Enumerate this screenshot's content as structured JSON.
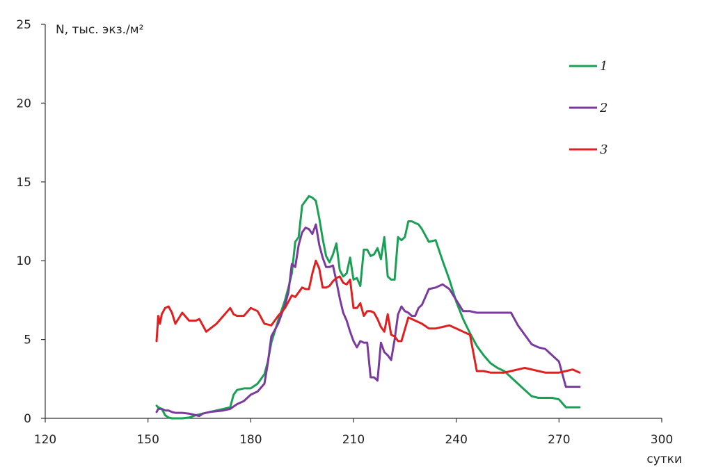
{
  "chart_data": {
    "type": "line",
    "title": "",
    "ylabel": "N, тыс. экз./м²",
    "xlabel": "сутки",
    "xlim": [
      120,
      300
    ],
    "ylim": [
      0,
      25
    ],
    "xticks": [
      120,
      150,
      180,
      210,
      240,
      270,
      300
    ],
    "yticks": [
      0,
      5,
      10,
      15,
      20,
      25
    ],
    "grid": false,
    "legend_position": "top-right",
    "series": [
      {
        "name": "1",
        "color": "#1aa055",
        "x": [
          152.5,
          153,
          154,
          155,
          156,
          157,
          158,
          160,
          162,
          164,
          165,
          166,
          168,
          170,
          172,
          174,
          175,
          176,
          178,
          180,
          182,
          184,
          185,
          186,
          188,
          190,
          191,
          192,
          193,
          194,
          195,
          196,
          197,
          198,
          199,
          200,
          201,
          202,
          203,
          204,
          205,
          206,
          207,
          208,
          209,
          210,
          211,
          212,
          213,
          214,
          215,
          216,
          217,
          218,
          219,
          220,
          221,
          222,
          223,
          224,
          225,
          226,
          227,
          228,
          229,
          230,
          232,
          234,
          236,
          238,
          240,
          242,
          244,
          246,
          248,
          250,
          252,
          254,
          256,
          258,
          260,
          262,
          264,
          266,
          268,
          270,
          272,
          274,
          276
        ],
        "y": [
          0.8,
          0.7,
          0.6,
          0.2,
          0.05,
          0,
          0,
          0,
          0.05,
          0.2,
          0.25,
          0.3,
          0.4,
          0.5,
          0.6,
          0.7,
          1.5,
          1.8,
          1.9,
          1.9,
          2.2,
          2.8,
          3.6,
          4.8,
          6.2,
          7.5,
          8.3,
          9.2,
          11.2,
          11.5,
          13.5,
          13.8,
          14.1,
          14.0,
          13.8,
          12.7,
          11.4,
          10.3,
          9.9,
          10.4,
          11.1,
          9.4,
          9.0,
          9.2,
          10.2,
          8.8,
          8.9,
          8.4,
          10.7,
          10.7,
          10.3,
          10.4,
          10.8,
          10.1,
          11.5,
          9.0,
          8.8,
          8.8,
          11.5,
          11.3,
          11.5,
          12.5,
          12.5,
          12.4,
          12.3,
          12.0,
          11.2,
          11.3,
          10.0,
          8.8,
          7.4,
          6.3,
          5.4,
          4.6,
          4.0,
          3.5,
          3.2,
          3.0,
          2.6,
          2.2,
          1.8,
          1.4,
          1.3,
          1.3,
          1.3,
          1.2,
          0.7,
          0.7,
          0.7
        ]
      },
      {
        "name": "2",
        "color": "#7a3a9e",
        "x": [
          152.5,
          153,
          154,
          155,
          156,
          157,
          158,
          160,
          162,
          164,
          165,
          166,
          168,
          170,
          172,
          174,
          176,
          178,
          180,
          182,
          184,
          185,
          186,
          188,
          190,
          191,
          192,
          193,
          194,
          195,
          196,
          197,
          198,
          199,
          200,
          201,
          202,
          203,
          204,
          205,
          206,
          207,
          208,
          209,
          210,
          211,
          212,
          213,
          214,
          215,
          216,
          217,
          218,
          219,
          220,
          221,
          222,
          223,
          224,
          225,
          226,
          227,
          228,
          229,
          230,
          232,
          234,
          236,
          238,
          240,
          242,
          244,
          246,
          248,
          250,
          252,
          254,
          256,
          258,
          260,
          262,
          264,
          266,
          268,
          270,
          272,
          274,
          276
        ],
        "y": [
          0.4,
          0.6,
          0.6,
          0.5,
          0.5,
          0.4,
          0.35,
          0.35,
          0.3,
          0.2,
          0.15,
          0.3,
          0.4,
          0.45,
          0.5,
          0.6,
          0.9,
          1.1,
          1.5,
          1.7,
          2.2,
          3.5,
          5.2,
          6.0,
          7.2,
          8.0,
          9.8,
          9.6,
          11.0,
          11.8,
          12.1,
          12.0,
          11.7,
          12.3,
          11.0,
          10.2,
          9.6,
          9.6,
          9.7,
          8.7,
          7.6,
          6.7,
          6.2,
          5.5,
          4.9,
          4.5,
          4.9,
          4.8,
          4.8,
          2.6,
          2.6,
          2.4,
          4.8,
          4.2,
          4.0,
          3.7,
          5.0,
          6.6,
          7.1,
          6.8,
          6.7,
          6.5,
          6.5,
          7.0,
          7.2,
          8.2,
          8.3,
          8.5,
          8.2,
          7.5,
          6.8,
          6.8,
          6.7,
          6.7,
          6.7,
          6.7,
          6.7,
          6.7,
          5.9,
          5.3,
          4.7,
          4.5,
          4.4,
          4.0,
          3.6,
          2.0,
          2.0,
          2.0
        ],
        "_fix": true
      },
      {
        "name": "3",
        "color": "#e02020",
        "x": [
          152.5,
          153,
          153.5,
          154,
          155,
          156,
          157,
          158,
          160,
          162,
          164,
          165,
          167,
          170,
          172,
          174,
          175,
          176,
          178,
          180,
          182,
          184,
          186,
          188,
          190,
          192,
          193,
          194,
          195,
          196,
          197,
          198,
          199,
          200,
          201,
          202,
          203,
          204,
          205,
          206,
          207,
          208,
          209,
          210,
          211,
          212,
          213,
          214,
          215,
          216,
          217,
          218,
          219,
          220,
          221,
          222,
          223,
          224,
          226,
          228,
          230,
          232,
          234,
          236,
          238,
          240,
          242,
          244,
          246,
          248,
          250,
          252,
          254,
          256,
          258,
          260,
          262,
          264,
          266,
          268,
          270,
          272,
          274,
          276
        ],
        "y": [
          4.9,
          6.5,
          6.0,
          6.6,
          7.0,
          7.1,
          6.7,
          6.0,
          6.7,
          6.2,
          6.2,
          6.3,
          5.5,
          6.0,
          6.5,
          7.0,
          6.6,
          6.5,
          6.5,
          7.0,
          6.8,
          6.0,
          5.9,
          6.5,
          7.0,
          7.8,
          7.7,
          8.0,
          8.3,
          8.2,
          8.2,
          9.2,
          10.0,
          9.5,
          8.3,
          8.3,
          8.4,
          8.7,
          8.9,
          9.0,
          8.6,
          8.5,
          8.8,
          7.0,
          7.0,
          7.3,
          6.5,
          6.8,
          6.8,
          6.7,
          6.3,
          5.8,
          5.5,
          6.6,
          5.3,
          5.2,
          4.9,
          4.9,
          6.4,
          6.2,
          6.0,
          5.7,
          5.7,
          5.8,
          5.9,
          5.7,
          5.5,
          5.3,
          3.0,
          3.0,
          2.9,
          2.9,
          2.9,
          3.0,
          3.1,
          3.2,
          3.1,
          3.0,
          2.9,
          2.9,
          2.9,
          3.0,
          3.1,
          2.9
        ]
      }
    ]
  }
}
